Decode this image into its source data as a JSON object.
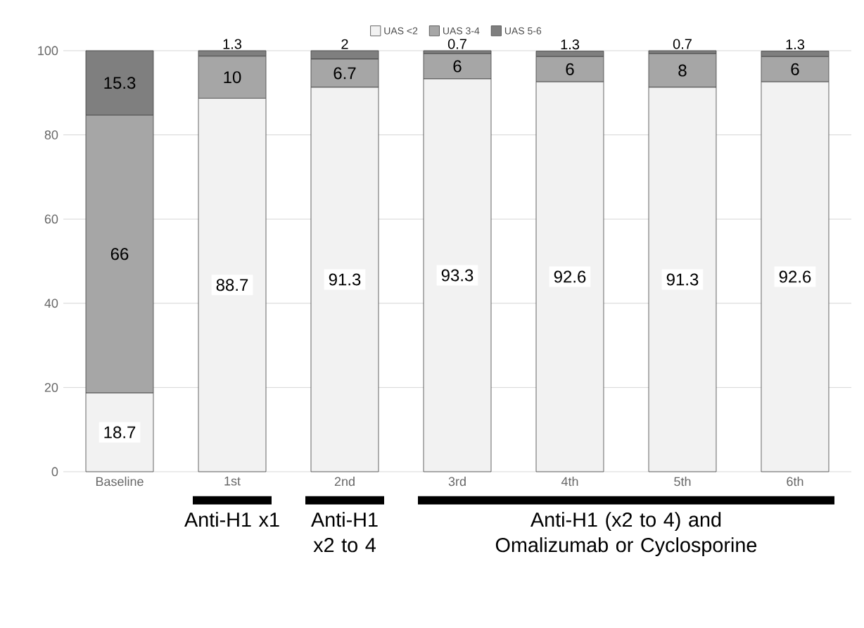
{
  "chart_data": {
    "type": "bar",
    "stacked": true,
    "categories": [
      "Baseline",
      "1st",
      "2nd",
      "3rd",
      "4th",
      "5th",
      "6th"
    ],
    "series": [
      {
        "name": "UAS <2",
        "color": "#f2f2f2",
        "values": [
          18.7,
          88.7,
          91.3,
          93.3,
          92.6,
          91.3,
          92.6
        ]
      },
      {
        "name": "UAS 3-4",
        "color": "#a6a6a6",
        "values": [
          66,
          10,
          6.7,
          6,
          6,
          8,
          6
        ]
      },
      {
        "name": "UAS 5-6",
        "color": "#7f7f7f",
        "values": [
          15.3,
          1.3,
          2,
          0.7,
          1.3,
          0.7,
          1.3
        ]
      }
    ],
    "ylim": [
      0,
      100
    ],
    "yticks": [
      0,
      20,
      40,
      60,
      80,
      100
    ],
    "grid": "y",
    "legend": "top",
    "data_labels": true,
    "annotations": [
      "Anti-H1 x1",
      "Anti-H1 x2 to 4",
      "Anti-H1 (x2 to 4) and Omalizumab or Cyclosporine"
    ]
  }
}
